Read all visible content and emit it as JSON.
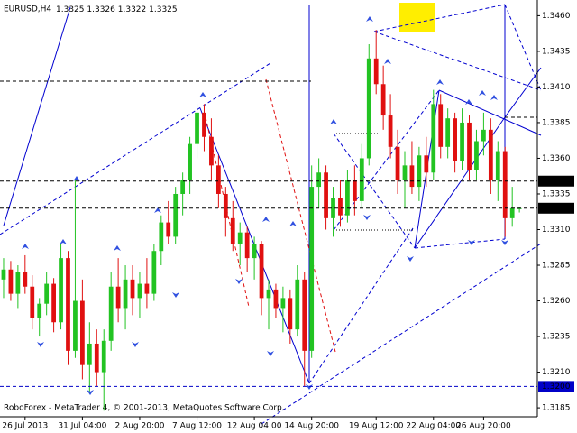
{
  "chart_data": {
    "type": "candlestick",
    "symbol": "EURUSD,H4",
    "footer": "RoboForex - MetaTrader 4, © 2001-2013, MetaQuotes Software Corp.",
    "up_color": "#22c322",
    "down_color": "#e01010",
    "ylim": [
      1.318,
      1.3471
    ],
    "yticks": [
      {
        "value": 1.346,
        "label": "1.3460"
      },
      {
        "value": 1.3435,
        "label": "1.3435"
      },
      {
        "value": 1.341,
        "label": "1.3410"
      },
      {
        "value": 1.3385,
        "label": "1.3385"
      },
      {
        "value": 1.336,
        "label": "1.3360"
      },
      {
        "value": 1.3335,
        "label": "1.3335"
      },
      {
        "value": 1.331,
        "label": "1.3310"
      },
      {
        "value": 1.3285,
        "label": "1.3285"
      },
      {
        "value": 1.326,
        "label": "1.3260"
      },
      {
        "value": 1.3235,
        "label": "1.3235"
      },
      {
        "value": 1.321,
        "label": "1.3210"
      },
      {
        "value": 1.3185,
        "label": "1.3185"
      }
    ],
    "xticks": [
      {
        "value": 3,
        "label": "26 Jul 2013"
      },
      {
        "value": 11,
        "label": "31 Jul 04:00"
      },
      {
        "value": 19,
        "label": "2 Aug 20:00"
      },
      {
        "value": 27,
        "label": "7 Aug 12:00"
      },
      {
        "value": 35,
        "label": "12 Aug 04:00"
      },
      {
        "value": 43,
        "label": "14 Aug 20:00"
      },
      {
        "value": 52,
        "label": "19 Aug 12:00"
      },
      {
        "value": 60,
        "label": "22 Aug 04:00"
      },
      {
        "value": 67,
        "label": "26 Aug 20:00"
      }
    ],
    "price_labels": [
      {
        "value": 1.3344,
        "label": "1.3344",
        "color": "#000000"
      },
      {
        "value": 1.3325,
        "label": "1.3325",
        "color": "#000000"
      },
      {
        "value": 1.32,
        "label": "1.3200",
        "color": "#0000c8"
      }
    ],
    "ohlc": [
      [
        1.3275,
        1.329,
        1.3262,
        1.3282
      ],
      [
        1.3282,
        1.3288,
        1.326,
        1.3265
      ],
      [
        1.3265,
        1.3285,
        1.3255,
        1.328
      ],
      [
        1.328,
        1.3292,
        1.3265,
        1.327
      ],
      [
        1.327,
        1.3278,
        1.324,
        1.3248
      ],
      [
        1.3248,
        1.3262,
        1.3235,
        1.3258
      ],
      [
        1.3258,
        1.328,
        1.325,
        1.3272
      ],
      [
        1.3272,
        1.3276,
        1.3238,
        1.3245
      ],
      [
        1.3245,
        1.33,
        1.324,
        1.329
      ],
      [
        1.329,
        1.3295,
        1.3215,
        1.3225
      ],
      [
        1.3225,
        1.3345,
        1.322,
        1.326
      ],
      [
        1.326,
        1.3275,
        1.3205,
        1.3215
      ],
      [
        1.3215,
        1.3245,
        1.3195,
        1.323
      ],
      [
        1.323,
        1.324,
        1.32,
        1.321
      ],
      [
        1.321,
        1.324,
        1.3183,
        1.3232
      ],
      [
        1.3232,
        1.328,
        1.3225,
        1.327
      ],
      [
        1.327,
        1.329,
        1.3245,
        1.3255
      ],
      [
        1.3255,
        1.3285,
        1.324,
        1.3275
      ],
      [
        1.3275,
        1.3285,
        1.325,
        1.3262
      ],
      [
        1.3262,
        1.328,
        1.3248,
        1.3272
      ],
      [
        1.3272,
        1.329,
        1.3255,
        1.3265
      ],
      [
        1.3265,
        1.33,
        1.326,
        1.3295
      ],
      [
        1.3295,
        1.332,
        1.3285,
        1.3315
      ],
      [
        1.3315,
        1.333,
        1.33,
        1.3305
      ],
      [
        1.3305,
        1.334,
        1.33,
        1.3335
      ],
      [
        1.3335,
        1.335,
        1.332,
        1.3345
      ],
      [
        1.3345,
        1.3375,
        1.3335,
        1.337
      ],
      [
        1.337,
        1.3398,
        1.336,
        1.3392
      ],
      [
        1.3392,
        1.3398,
        1.3365,
        1.3375
      ],
      [
        1.3375,
        1.3388,
        1.3345,
        1.3355
      ],
      [
        1.3355,
        1.3362,
        1.3325,
        1.3335
      ],
      [
        1.3335,
        1.334,
        1.3305,
        1.3318
      ],
      [
        1.3318,
        1.333,
        1.3295,
        1.33
      ],
      [
        1.33,
        1.3315,
        1.3285,
        1.3308
      ],
      [
        1.3308,
        1.3312,
        1.328,
        1.329
      ],
      [
        1.329,
        1.3305,
        1.3275,
        1.33
      ],
      [
        1.33,
        1.3302,
        1.325,
        1.3262
      ],
      [
        1.3262,
        1.3275,
        1.324,
        1.3268
      ],
      [
        1.3268,
        1.3272,
        1.3248,
        1.3255
      ],
      [
        1.3255,
        1.327,
        1.3238,
        1.3262
      ],
      [
        1.3262,
        1.3268,
        1.323,
        1.324
      ],
      [
        1.324,
        1.3285,
        1.3235,
        1.3275
      ],
      [
        1.3275,
        1.328,
        1.32,
        1.3225
      ],
      [
        1.3225,
        1.3355,
        1.322,
        1.334
      ],
      [
        1.334,
        1.336,
        1.3325,
        1.335
      ],
      [
        1.335,
        1.3355,
        1.331,
        1.3318
      ],
      [
        1.3318,
        1.334,
        1.3305,
        1.3332
      ],
      [
        1.3332,
        1.3345,
        1.3312,
        1.332
      ],
      [
        1.332,
        1.3352,
        1.3315,
        1.3345
      ],
      [
        1.3345,
        1.3355,
        1.332,
        1.333
      ],
      [
        1.333,
        1.337,
        1.3325,
        1.336
      ],
      [
        1.336,
        1.344,
        1.3355,
        1.343
      ],
      [
        1.343,
        1.345,
        1.3405,
        1.3412
      ],
      [
        1.3412,
        1.3425,
        1.338,
        1.339
      ],
      [
        1.339,
        1.3405,
        1.336,
        1.3368
      ],
      [
        1.3368,
        1.338,
        1.3335,
        1.3345
      ],
      [
        1.3345,
        1.3365,
        1.3325,
        1.3355
      ],
      [
        1.3355,
        1.3372,
        1.3335,
        1.334
      ],
      [
        1.334,
        1.3368,
        1.333,
        1.3362
      ],
      [
        1.3362,
        1.3375,
        1.334,
        1.335
      ],
      [
        1.335,
        1.3408,
        1.3345,
        1.3398
      ],
      [
        1.3398,
        1.3405,
        1.336,
        1.3368
      ],
      [
        1.3368,
        1.3395,
        1.336,
        1.3388
      ],
      [
        1.3388,
        1.3392,
        1.335,
        1.3358
      ],
      [
        1.3358,
        1.3395,
        1.3352,
        1.3385
      ],
      [
        1.3385,
        1.339,
        1.3345,
        1.3352
      ],
      [
        1.3352,
        1.338,
        1.3345,
        1.3372
      ],
      [
        1.3372,
        1.3392,
        1.3362,
        1.338
      ],
      [
        1.338,
        1.3388,
        1.3335,
        1.3345
      ],
      [
        1.3345,
        1.3372,
        1.333,
        1.3365
      ],
      [
        1.3365,
        1.3368,
        1.3305,
        1.3318
      ],
      [
        1.3318,
        1.334,
        1.3312,
        1.3325
      ],
      [
        1.3325,
        1.3326,
        1.3322,
        1.3325
      ]
    ]
  }
}
